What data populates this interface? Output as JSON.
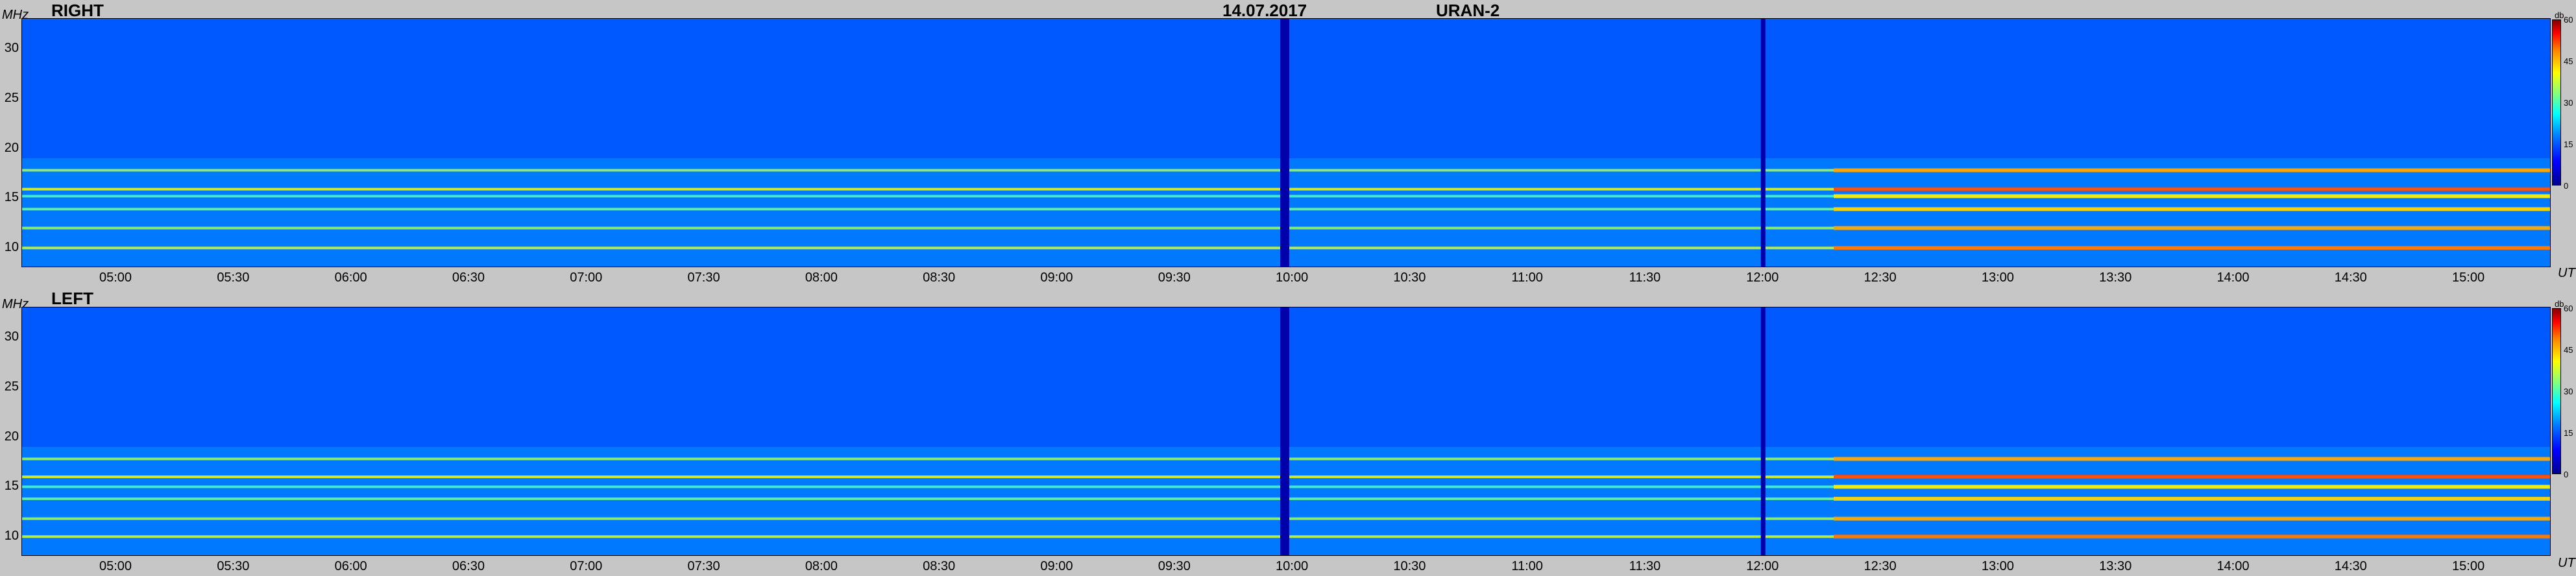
{
  "header": {
    "date": "14.07.2017",
    "instrument": "URAN-2"
  },
  "colorbar": {
    "unit": "db",
    "ticks": [
      "60",
      "45",
      "30",
      "15",
      "0"
    ],
    "range": [
      0,
      60
    ]
  },
  "chart_data": [
    {
      "type": "heatmap",
      "title": "RIGHT",
      "ylabel": "MHz",
      "xlabel": "UT",
      "ylim": [
        8,
        33
      ],
      "yticks": [
        "30",
        "25",
        "20",
        "15",
        "10"
      ],
      "xticks": [
        "05:00",
        "05:30",
        "06:00",
        "06:30",
        "07:00",
        "07:30",
        "08:00",
        "08:30",
        "09:00",
        "09:30",
        "10:00",
        "10:30",
        "11:00",
        "11:30",
        "12:00",
        "12:30",
        "13:00",
        "13:30",
        "14:00",
        "14:30",
        "15:00"
      ],
      "xlim_hours": [
        4.6,
        15.35
      ],
      "colorbar_unit": "db",
      "colorbar_range": [
        0,
        60
      ],
      "background_db": 15,
      "horizontal_bands": [
        {
          "freq_mhz": 17.8,
          "level_db": 35
        },
        {
          "freq_mhz": 15.9,
          "level_db": 40
        },
        {
          "freq_mhz": 15.2,
          "level_db": 30
        },
        {
          "freq_mhz": 13.9,
          "level_db": 32
        },
        {
          "freq_mhz": 12.0,
          "level_db": 35
        },
        {
          "freq_mhz": 10.0,
          "level_db": 38
        }
      ],
      "low_signal_times": [
        "09:58",
        "12:00"
      ]
    },
    {
      "type": "heatmap",
      "title": "LEFT",
      "ylabel": "MHz",
      "xlabel": "UT",
      "ylim": [
        8,
        33
      ],
      "yticks": [
        "30",
        "25",
        "20",
        "15",
        "10"
      ],
      "xticks": [
        "05:00",
        "05:30",
        "06:00",
        "06:30",
        "07:00",
        "07:30",
        "08:00",
        "08:30",
        "09:00",
        "09:30",
        "10:00",
        "10:30",
        "11:00",
        "11:30",
        "12:00",
        "12:30",
        "13:00",
        "13:30",
        "14:00",
        "14:30",
        "15:00"
      ],
      "xlim_hours": [
        4.6,
        15.35
      ],
      "colorbar_unit": "db",
      "colorbar_range": [
        0,
        60
      ],
      "background_db": 15,
      "horizontal_bands": [
        {
          "freq_mhz": 17.8,
          "level_db": 35
        },
        {
          "freq_mhz": 16.0,
          "level_db": 40
        },
        {
          "freq_mhz": 15.0,
          "level_db": 30
        },
        {
          "freq_mhz": 13.8,
          "level_db": 32
        },
        {
          "freq_mhz": 11.8,
          "level_db": 35
        },
        {
          "freq_mhz": 10.0,
          "level_db": 38
        }
      ],
      "low_signal_times": [
        "09:58",
        "12:00"
      ]
    }
  ]
}
